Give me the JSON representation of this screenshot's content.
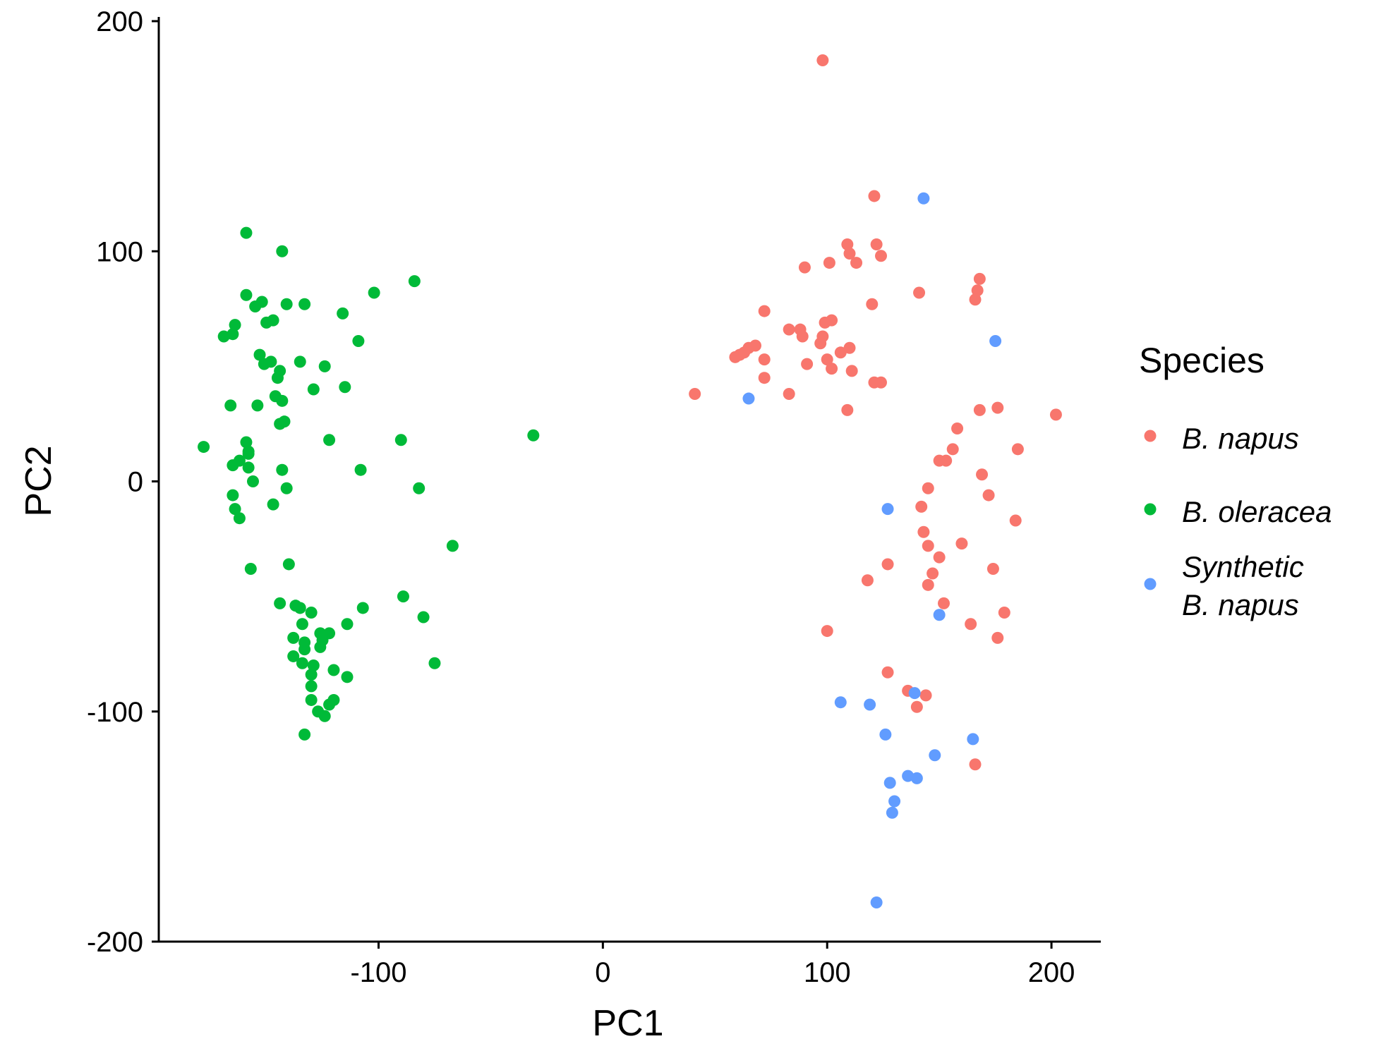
{
  "chart_data": {
    "type": "scatter",
    "title": "",
    "xlabel": "PC1",
    "ylabel": "PC2",
    "xlim": [
      -198,
      222
    ],
    "ylim": [
      -200,
      200
    ],
    "xticks": [
      -100,
      0,
      100,
      200
    ],
    "yticks": [
      -200,
      -100,
      0,
      100,
      200
    ],
    "xtick_labels": [
      "-100",
      "0",
      "100",
      "200"
    ],
    "ytick_labels": [
      "-200",
      "-100",
      "0",
      "100",
      "200"
    ],
    "grid": false,
    "legend": {
      "title": "Species",
      "position": "right"
    },
    "series": [
      {
        "name": "B. napus",
        "legend_lines": [
          "B. napus"
        ],
        "color": "#F8766D",
        "points": [
          [
            98,
            183
          ],
          [
            121,
            124
          ],
          [
            109,
            103
          ],
          [
            122,
            103
          ],
          [
            110,
            99
          ],
          [
            124,
            98
          ],
          [
            113,
            95
          ],
          [
            101,
            95
          ],
          [
            90,
            93
          ],
          [
            141,
            82
          ],
          [
            168,
            88
          ],
          [
            167,
            83
          ],
          [
            166,
            79
          ],
          [
            120,
            77
          ],
          [
            72,
            74
          ],
          [
            102,
            70
          ],
          [
            99,
            69
          ],
          [
            83,
            66
          ],
          [
            88,
            66
          ],
          [
            89,
            63
          ],
          [
            98,
            63
          ],
          [
            97,
            60
          ],
          [
            68,
            59
          ],
          [
            65,
            58
          ],
          [
            110,
            58
          ],
          [
            106,
            56
          ],
          [
            63,
            56
          ],
          [
            61,
            55
          ],
          [
            59,
            54
          ],
          [
            72,
            53
          ],
          [
            100,
            53
          ],
          [
            91,
            51
          ],
          [
            102,
            49
          ],
          [
            111,
            48
          ],
          [
            72,
            45
          ],
          [
            121,
            43
          ],
          [
            124,
            43
          ],
          [
            41,
            38
          ],
          [
            83,
            38
          ],
          [
            109,
            31
          ],
          [
            168,
            31
          ],
          [
            176,
            32
          ],
          [
            202,
            29
          ],
          [
            158,
            23
          ],
          [
            156,
            14
          ],
          [
            185,
            14
          ],
          [
            150,
            9
          ],
          [
            153,
            9
          ],
          [
            169,
            3
          ],
          [
            145,
            -3
          ],
          [
            172,
            -6
          ],
          [
            142,
            -11
          ],
          [
            184,
            -17
          ],
          [
            143,
            -22
          ],
          [
            160,
            -27
          ],
          [
            145,
            -28
          ],
          [
            150,
            -33
          ],
          [
            127,
            -36
          ],
          [
            174,
            -38
          ],
          [
            147,
            -40
          ],
          [
            118,
            -43
          ],
          [
            145,
            -45
          ],
          [
            152,
            -53
          ],
          [
            179,
            -57
          ],
          [
            164,
            -62
          ],
          [
            176,
            -68
          ],
          [
            100,
            -65
          ],
          [
            127,
            -83
          ],
          [
            136,
            -91
          ],
          [
            144,
            -93
          ],
          [
            140,
            -98
          ],
          [
            166,
            -123
          ]
        ]
      },
      {
        "name": "B. oleracea",
        "legend_lines": [
          "B. oleracea"
        ],
        "color": "#00BA38",
        "points": [
          [
            -159,
            108
          ],
          [
            -143,
            100
          ],
          [
            -159,
            81
          ],
          [
            -152,
            78
          ],
          [
            -155,
            76
          ],
          [
            -141,
            77
          ],
          [
            -133,
            77
          ],
          [
            -84,
            87
          ],
          [
            -102,
            82
          ],
          [
            -116,
            73
          ],
          [
            -164,
            68
          ],
          [
            -150,
            69
          ],
          [
            -147,
            70
          ],
          [
            -169,
            63
          ],
          [
            -165,
            64
          ],
          [
            -109,
            61
          ],
          [
            -153,
            55
          ],
          [
            -148,
            52
          ],
          [
            -151,
            51
          ],
          [
            -135,
            52
          ],
          [
            -124,
            50
          ],
          [
            -144,
            48
          ],
          [
            -145,
            45
          ],
          [
            -129,
            40
          ],
          [
            -115,
            41
          ],
          [
            -143,
            35
          ],
          [
            -146,
            37
          ],
          [
            -154,
            33
          ],
          [
            -166,
            33
          ],
          [
            -144,
            25
          ],
          [
            -142,
            26
          ],
          [
            -122,
            18
          ],
          [
            -90,
            18
          ],
          [
            -31,
            20
          ],
          [
            -159,
            17
          ],
          [
            -178,
            15
          ],
          [
            -158,
            13
          ],
          [
            -158,
            12
          ],
          [
            -162,
            9
          ],
          [
            -165,
            7
          ],
          [
            -158,
            6
          ],
          [
            -143,
            5
          ],
          [
            -108,
            5
          ],
          [
            -156,
            0
          ],
          [
            -141,
            -3
          ],
          [
            -82,
            -3
          ],
          [
            -165,
            -6
          ],
          [
            -147,
            -10
          ],
          [
            -164,
            -12
          ],
          [
            -162,
            -16
          ],
          [
            -67,
            -28
          ],
          [
            -157,
            -38
          ],
          [
            -140,
            -36
          ],
          [
            -89,
            -50
          ],
          [
            -144,
            -53
          ],
          [
            -137,
            -54
          ],
          [
            -135,
            -55
          ],
          [
            -107,
            -55
          ],
          [
            -130,
            -57
          ],
          [
            -80,
            -59
          ],
          [
            -114,
            -62
          ],
          [
            -134,
            -62
          ],
          [
            -122,
            -66
          ],
          [
            -126,
            -66
          ],
          [
            -125,
            -69
          ],
          [
            -138,
            -68
          ],
          [
            -133,
            -70
          ],
          [
            -126,
            -72
          ],
          [
            -133,
            -73
          ],
          [
            -138,
            -76
          ],
          [
            -134,
            -79
          ],
          [
            -75,
            -79
          ],
          [
            -129,
            -80
          ],
          [
            -120,
            -82
          ],
          [
            -130,
            -84
          ],
          [
            -114,
            -85
          ],
          [
            -130,
            -89
          ],
          [
            -130,
            -95
          ],
          [
            -120,
            -95
          ],
          [
            -122,
            -97
          ],
          [
            -127,
            -100
          ],
          [
            -124,
            -102
          ],
          [
            -133,
            -110
          ]
        ]
      },
      {
        "name": "Synthetic B. napus",
        "legend_lines": [
          "Synthetic",
          "B. napus"
        ],
        "color": "#619CFF",
        "points": [
          [
            143,
            123
          ],
          [
            175,
            61
          ],
          [
            65,
            36
          ],
          [
            127,
            -12
          ],
          [
            150,
            -58
          ],
          [
            139,
            -92
          ],
          [
            106,
            -96
          ],
          [
            119,
            -97
          ],
          [
            126,
            -110
          ],
          [
            165,
            -112
          ],
          [
            148,
            -119
          ],
          [
            136,
            -128
          ],
          [
            140,
            -129
          ],
          [
            128,
            -131
          ],
          [
            130,
            -139
          ],
          [
            129,
            -144
          ],
          [
            122,
            -183
          ]
        ]
      }
    ]
  }
}
